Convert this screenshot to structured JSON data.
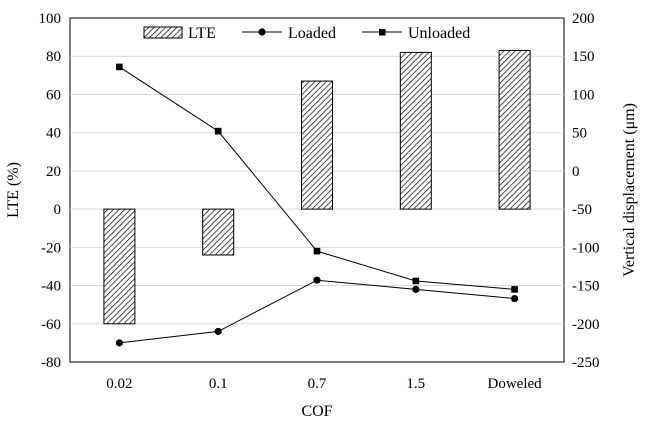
{
  "chart_data": {
    "type": "bar",
    "title": "",
    "categories": [
      "0.02",
      "0.1",
      "0.7",
      "1.5",
      "Doweled"
    ],
    "xlabel": "COF",
    "ylabel": "LTE (%)",
    "y2label": "Vertical displacement (μm)",
    "ylim": [
      -80,
      100
    ],
    "y2lim": [
      -250,
      200
    ],
    "yticks": [
      "100",
      "80",
      "60",
      "40",
      "20",
      "0",
      "-20",
      "-40",
      "-60",
      "-80"
    ],
    "y2ticks": [
      "200",
      "150",
      "100",
      "50",
      "0",
      "-50",
      "-100",
      "-150",
      "-200",
      "-250"
    ],
    "grid": true,
    "legend_position": "top",
    "series": [
      {
        "name": "LTE",
        "kind": "bar",
        "axis": "left",
        "pattern": "hatched",
        "values": [
          -60,
          -24,
          67,
          82,
          83
        ]
      },
      {
        "name": "Loaded",
        "kind": "line",
        "axis": "right",
        "marker": "circle",
        "values": [
          -225,
          -210,
          -143,
          -155,
          -167
        ]
      },
      {
        "name": "Unloaded",
        "kind": "line",
        "axis": "right",
        "marker": "square",
        "values": [
          136,
          52,
          -105,
          -144,
          -155
        ]
      }
    ]
  }
}
